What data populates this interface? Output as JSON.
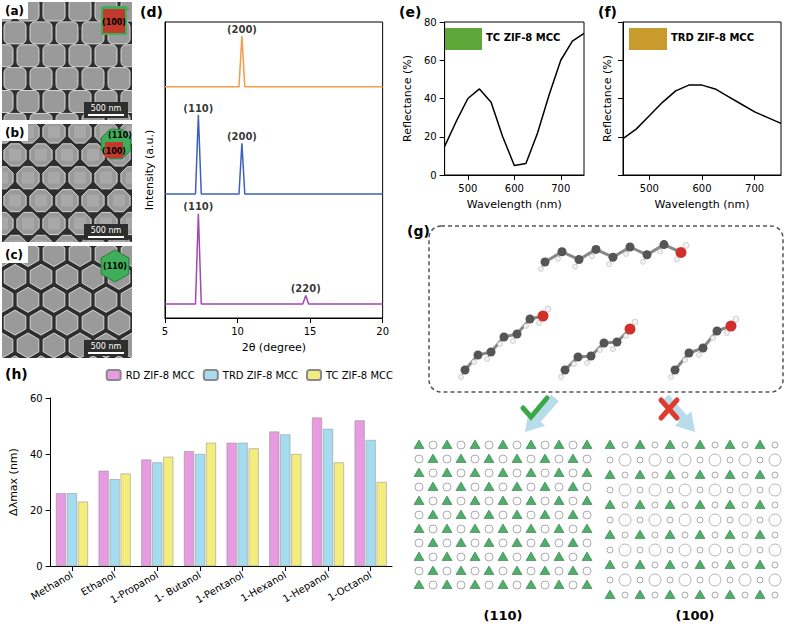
{
  "figure": {
    "a": {
      "label": "(a)",
      "facets": [
        "(100)"
      ],
      "scale_bar": "500 nm"
    },
    "b": {
      "label": "(b)",
      "facets": [
        "(110)",
        "(100)"
      ],
      "scale_bar": "500 nm"
    },
    "c": {
      "label": "(c)",
      "facets": [
        "(110)"
      ],
      "scale_bar": "500 nm"
    },
    "g": {
      "label": "(g)",
      "planes": [
        "(110)",
        "(100)"
      ]
    }
  },
  "chart_data": [
    {
      "type": "line",
      "title": "(d)",
      "x_label": "2θ (degree)",
      "y_label": "Intensity (a.u.)",
      "xlim": [
        5,
        20
      ],
      "xticks": [
        5,
        10,
        15,
        20
      ],
      "ylim": [
        0,
        105
      ],
      "tick_labels": "x",
      "series": [
        {
          "color": "#f39c4a",
          "x": [
            5,
            10.1,
            10.3,
            10.5,
            20
          ],
          "values": [
            82,
            82,
            100,
            82,
            82
          ]
        },
        {
          "color": "#3d5fc0",
          "x": [
            5,
            7.1,
            7.3,
            7.5,
            10.1,
            10.3,
            10.5,
            20
          ],
          "values": [
            44,
            44,
            72,
            44,
            44,
            62,
            44,
            44
          ]
        },
        {
          "color": "#a447b5",
          "x": [
            5,
            7.1,
            7.3,
            7.5,
            14.5,
            14.7,
            14.9,
            20
          ],
          "values": [
            5,
            5,
            37,
            5,
            5,
            8,
            5,
            5
          ]
        }
      ],
      "annotations": [
        {
          "text": "(200)",
          "x": 10.3,
          "y": 100
        },
        {
          "text": "(110)",
          "x": 7.3,
          "y": 72
        },
        {
          "text": "(200)",
          "x": 10.3,
          "y": 62
        },
        {
          "text": "(110)",
          "x": 7.3,
          "y": 37
        },
        {
          "text": "(220)",
          "x": 14.7,
          "y": 8
        }
      ]
    },
    {
      "type": "line",
      "title": "(e)",
      "x_label": "Wavelength (nm)",
      "y_label": "Reflectance (%)",
      "xlim": [
        450,
        750
      ],
      "xticks": [
        500,
        600,
        700
      ],
      "ylim": [
        0,
        80
      ],
      "yticks": [
        0,
        20,
        40,
        60,
        80
      ],
      "series": [
        {
          "color": "#000000",
          "x": [
            450,
            475,
            500,
            525,
            550,
            575,
            600,
            625,
            650,
            675,
            700,
            725,
            750
          ],
          "values": [
            15,
            28,
            40,
            45,
            38,
            20,
            5,
            6,
            22,
            42,
            60,
            70,
            74
          ]
        }
      ],
      "annotations": [
        {
          "text": "TC ZIF-8 MCC",
          "color": "#5ea83a"
        }
      ]
    },
    {
      "type": "line",
      "title": "(f)",
      "x_label": "Wavelength (nm)",
      "y_label": "Reflectance (%)",
      "xlim": [
        450,
        750
      ],
      "xticks": [
        500,
        600,
        700
      ],
      "ylim": [
        0,
        80
      ],
      "yticks": [
        0,
        20,
        40,
        60,
        80
      ],
      "tick_labels": "x",
      "series": [
        {
          "color": "#000000",
          "x": [
            450,
            475,
            500,
            525,
            550,
            575,
            600,
            625,
            650,
            675,
            700,
            725,
            750
          ],
          "values": [
            19,
            24,
            31,
            38,
            44,
            47,
            47,
            45,
            41,
            37,
            33,
            30,
            27
          ]
        }
      ],
      "annotations": [
        {
          "text": "TRD ZIF-8 MCC",
          "color": "#c99a2c"
        }
      ]
    },
    {
      "type": "bar",
      "title": "(h)",
      "y_label": "Δλmax (nm)",
      "categories": [
        "Methanol",
        "Ethanol",
        "1-Propanol",
        "1- Butanol",
        "1-Pentanol",
        "1-Hexanol",
        "1-Hepanol",
        "1-Octanol"
      ],
      "ylim": [
        0,
        60
      ],
      "yticks": [
        0,
        20,
        40,
        60
      ],
      "legend": "top",
      "series": [
        {
          "name": "RD ZIF-8 MCC",
          "color": "#e79be0",
          "values": [
            26,
            34,
            38,
            41,
            44,
            48,
            53,
            52
          ]
        },
        {
          "name": "TRD ZIF-8 MCC",
          "color": "#a6dcef",
          "values": [
            26,
            31,
            37,
            40,
            44,
            47,
            49,
            45
          ]
        },
        {
          "name": "TC ZIF-8 MCC",
          "color": "#f3ec7e",
          "values": [
            23,
            33,
            39,
            44,
            42,
            40,
            37,
            30
          ]
        }
      ]
    }
  ]
}
